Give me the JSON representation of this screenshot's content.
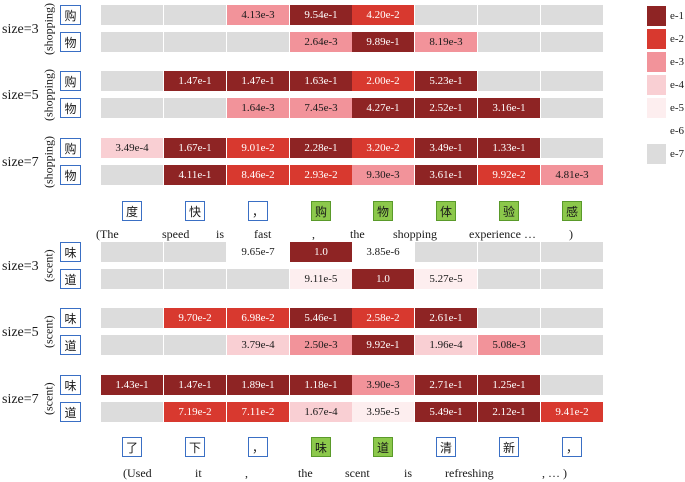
{
  "colors": {
    "empty": "#dcdcdc",
    "dark": "#8e2424",
    "e-2": "#d8392f",
    "e-3": "#f2939a",
    "e-4": "#f9cfd3",
    "e-5": "#fdeeef",
    "e-6": "#ffffff",
    "e-7": "#dcdcdc",
    "token_highlight": "#8cc84b",
    "box_border": "#3a6fc4"
  },
  "legend": [
    "e-1",
    "e-2",
    "e-3",
    "e-4",
    "e-5",
    "e-6",
    "e-7"
  ],
  "sections": [
    {
      "name": "shopping",
      "bracket": "(shopping)",
      "groups": [
        {
          "size": "size=3",
          "rows": [
            {
              "char": "购",
              "cells": [
                null,
                null,
                "4.13e-3",
                "9.54e-1",
                "4.20e-2",
                null,
                null,
                null
              ]
            },
            {
              "char": "物",
              "cells": [
                null,
                null,
                null,
                "2.64e-3",
                "9.89e-1",
                "8.19e-3",
                null,
                null
              ]
            }
          ]
        },
        {
          "size": "size=5",
          "rows": [
            {
              "char": "购",
              "cells": [
                null,
                "1.47e-1",
                "1.47e-1",
                "1.63e-1",
                "2.00e-2",
                "5.23e-1",
                null,
                null
              ]
            },
            {
              "char": "物",
              "cells": [
                null,
                null,
                "1.64e-3",
                "7.45e-3",
                "4.27e-1",
                "2.52e-1",
                "3.16e-1",
                null
              ]
            }
          ]
        },
        {
          "size": "size=7",
          "rows": [
            {
              "char": "购",
              "cells": [
                "3.49e-4",
                "1.67e-1",
                "9.01e-2",
                "2.28e-1",
                "3.20e-2",
                "3.49e-1",
                "1.33e-1",
                null
              ]
            },
            {
              "char": "物",
              "cells": [
                null,
                "4.11e-1",
                "8.46e-2",
                "2.93e-2",
                "9.30e-3",
                "3.61e-1",
                "9.92e-2",
                "4.81e-3"
              ]
            }
          ]
        }
      ],
      "tokens": [
        "度",
        "快",
        "，",
        "购",
        "物",
        "体",
        "验",
        "感"
      ],
      "highlight": [
        3,
        4,
        5,
        6,
        7
      ],
      "gloss": [
        "(The",
        "speed",
        "is",
        "fast",
        ",",
        "the",
        "shopping",
        "experience …",
        ")"
      ]
    },
    {
      "name": "scent",
      "bracket": "(scent)",
      "groups": [
        {
          "size": "size=3",
          "rows": [
            {
              "char": "味",
              "cells": [
                null,
                null,
                "9.65e-7",
                "1.0",
                "3.85e-6",
                null,
                null,
                null
              ]
            },
            {
              "char": "道",
              "cells": [
                null,
                null,
                null,
                "9.11e-5",
                "1.0",
                "5.27e-5",
                null,
                null
              ]
            }
          ]
        },
        {
          "size": "size=5",
          "rows": [
            {
              "char": "味",
              "cells": [
                null,
                "9.70e-2",
                "6.98e-2",
                "5.46e-1",
                "2.58e-2",
                "2.61e-1",
                null,
                null
              ]
            },
            {
              "char": "道",
              "cells": [
                null,
                null,
                "3.79e-4",
                "2.50e-3",
                "9.92e-1",
                "1.96e-4",
                "5.08e-3",
                null
              ]
            }
          ]
        },
        {
          "size": "size=7",
          "rows": [
            {
              "char": "味",
              "cells": [
                "1.43e-1",
                "1.47e-1",
                "1.89e-1",
                "1.18e-1",
                "3.90e-3",
                "2.71e-1",
                "1.25e-1",
                null
              ]
            },
            {
              "char": "道",
              "cells": [
                null,
                "7.19e-2",
                "7.11e-2",
                "1.67e-4",
                "3.95e-5",
                "5.49e-1",
                "2.12e-1",
                "9.41e-2"
              ]
            }
          ]
        }
      ],
      "tokens": [
        "了",
        "下",
        "，",
        "味",
        "道",
        "清",
        "新",
        "，"
      ],
      "highlight": [
        3,
        4
      ],
      "gloss": [
        "(Used",
        "it",
        ",",
        "the",
        "scent",
        "is",
        "refreshing",
        ", … )"
      ]
    }
  ]
}
